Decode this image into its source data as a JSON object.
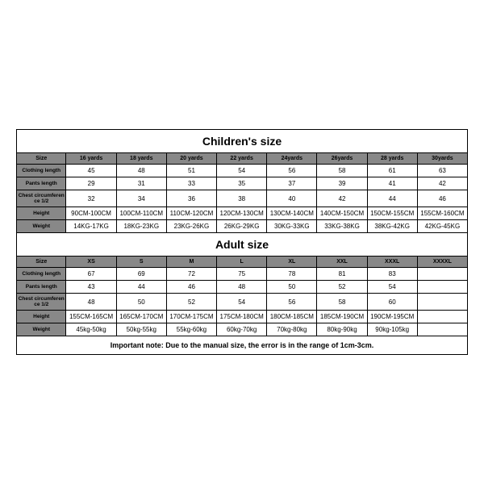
{
  "children": {
    "title": "Children's size",
    "headers": [
      "Size",
      "16 yards",
      "18 yards",
      "20 yards",
      "22 yards",
      "24yards",
      "26yards",
      "28 yards",
      "30yards"
    ],
    "rows": [
      {
        "label": "Clothing length",
        "cells": [
          "45",
          "48",
          "51",
          "54",
          "56",
          "58",
          "61",
          "63"
        ]
      },
      {
        "label": "Pants length",
        "cells": [
          "29",
          "31",
          "33",
          "35",
          "37",
          "39",
          "41",
          "42"
        ]
      },
      {
        "label": "Chest circumference 1/2",
        "cells": [
          "32",
          "34",
          "36",
          "38",
          "40",
          "42",
          "44",
          "46"
        ]
      },
      {
        "label": "Height",
        "cells": [
          "90CM-100CM",
          "100CM-110CM",
          "110CM-120CM",
          "120CM-130CM",
          "130CM-140CM",
          "140CM-150CM",
          "150CM-155CM",
          "155CM-160CM"
        ]
      },
      {
        "label": "Weight",
        "cells": [
          "14KG-17KG",
          "18KG-23KG",
          "23KG-26KG",
          "26KG-29KG",
          "30KG-33KG",
          "33KG-38KG",
          "38KG-42KG",
          "42KG-45KG"
        ]
      }
    ]
  },
  "adult": {
    "title": "Adult size",
    "headers": [
      "Size",
      "XS",
      "S",
      "M",
      "L",
      "XL",
      "XXL",
      "XXXL",
      "XXXXL"
    ],
    "rows": [
      {
        "label": "Clothing length",
        "cells": [
          "67",
          "69",
          "72",
          "75",
          "78",
          "81",
          "83",
          ""
        ]
      },
      {
        "label": "Pants length",
        "cells": [
          "43",
          "44",
          "46",
          "48",
          "50",
          "52",
          "54",
          ""
        ]
      },
      {
        "label": "Chest circumference 1/2",
        "cells": [
          "48",
          "50",
          "52",
          "54",
          "56",
          "58",
          "60",
          ""
        ]
      },
      {
        "label": "Height",
        "cells": [
          "155CM-165CM",
          "165CM-170CM",
          "170CM-175CM",
          "175CM-180CM",
          "180CM-185CM",
          "185CM-190CM",
          "190CM-195CM",
          ""
        ]
      },
      {
        "label": "Weight",
        "cells": [
          "45kg-50kg",
          "50kg-55kg",
          "55kg-60kg",
          "60kg-70kg",
          "70kg-80kg",
          "80kg-90kg",
          "90kg-105kg",
          ""
        ]
      }
    ]
  },
  "note": "Important note: Due to the manual size, the error is in the range of 1cm-3cm.",
  "style": {
    "header_bg": "#888888",
    "border_color": "#000000",
    "bg": "#ffffff"
  }
}
